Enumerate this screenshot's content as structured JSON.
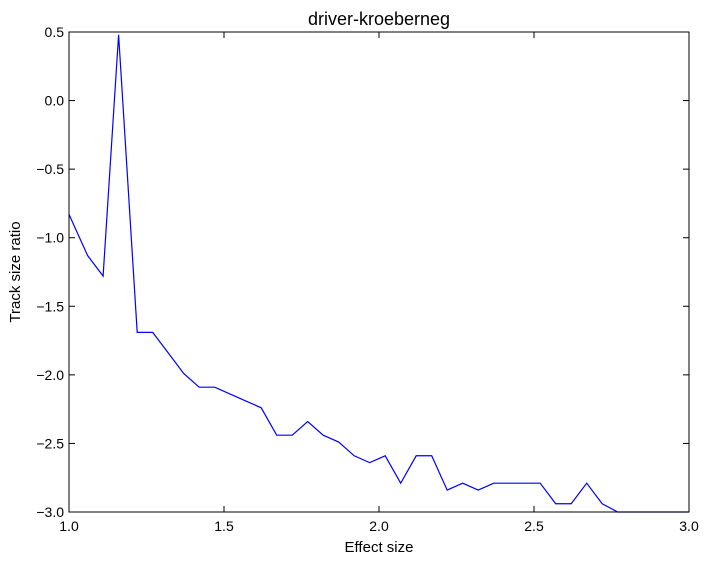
{
  "chart_data": {
    "type": "line",
    "title": "driver-kroeberneg",
    "xlabel": "Effect size",
    "ylabel": "Track size ratio",
    "xlim": [
      1.0,
      3.0
    ],
    "ylim": [
      -3.0,
      0.5
    ],
    "x_ticks": [
      "1.0",
      "1.5",
      "2.0",
      "2.5",
      "3.0"
    ],
    "y_ticks": [
      "0.5",
      "0.0",
      "−0.5",
      "−1.0",
      "−1.5",
      "−2.0",
      "−2.5",
      "−3.0"
    ],
    "grid": false,
    "series": [
      {
        "color": "#0000ff",
        "x": [
          1.0,
          1.06,
          1.11,
          1.16,
          1.22,
          1.27,
          1.32,
          1.37,
          1.42,
          1.47,
          1.52,
          1.57,
          1.62,
          1.67,
          1.72,
          1.77,
          1.82,
          1.87,
          1.92,
          1.97,
          2.02,
          2.07,
          2.12,
          2.17,
          2.22,
          2.27,
          2.32,
          2.37,
          2.42,
          2.47,
          2.52,
          2.57,
          2.62,
          2.67,
          2.72,
          2.77,
          2.82,
          2.87,
          2.92,
          2.97,
          3.0
        ],
        "y": [
          -0.83,
          -1.13,
          -1.28,
          0.48,
          -1.69,
          -1.69,
          -1.84,
          -1.99,
          -2.09,
          -2.09,
          -2.14,
          -2.19,
          -2.24,
          -2.44,
          -2.44,
          -2.34,
          -2.44,
          -2.49,
          -2.59,
          -2.64,
          -2.59,
          -2.79,
          -2.59,
          -2.59,
          -2.84,
          -2.79,
          -2.84,
          -2.79,
          -2.79,
          -2.79,
          -2.79,
          -2.94,
          -2.94,
          -2.79,
          -2.94,
          -3.0,
          -3.0,
          -3.0,
          -3.0,
          -3.0,
          -3.0
        ]
      }
    ]
  }
}
